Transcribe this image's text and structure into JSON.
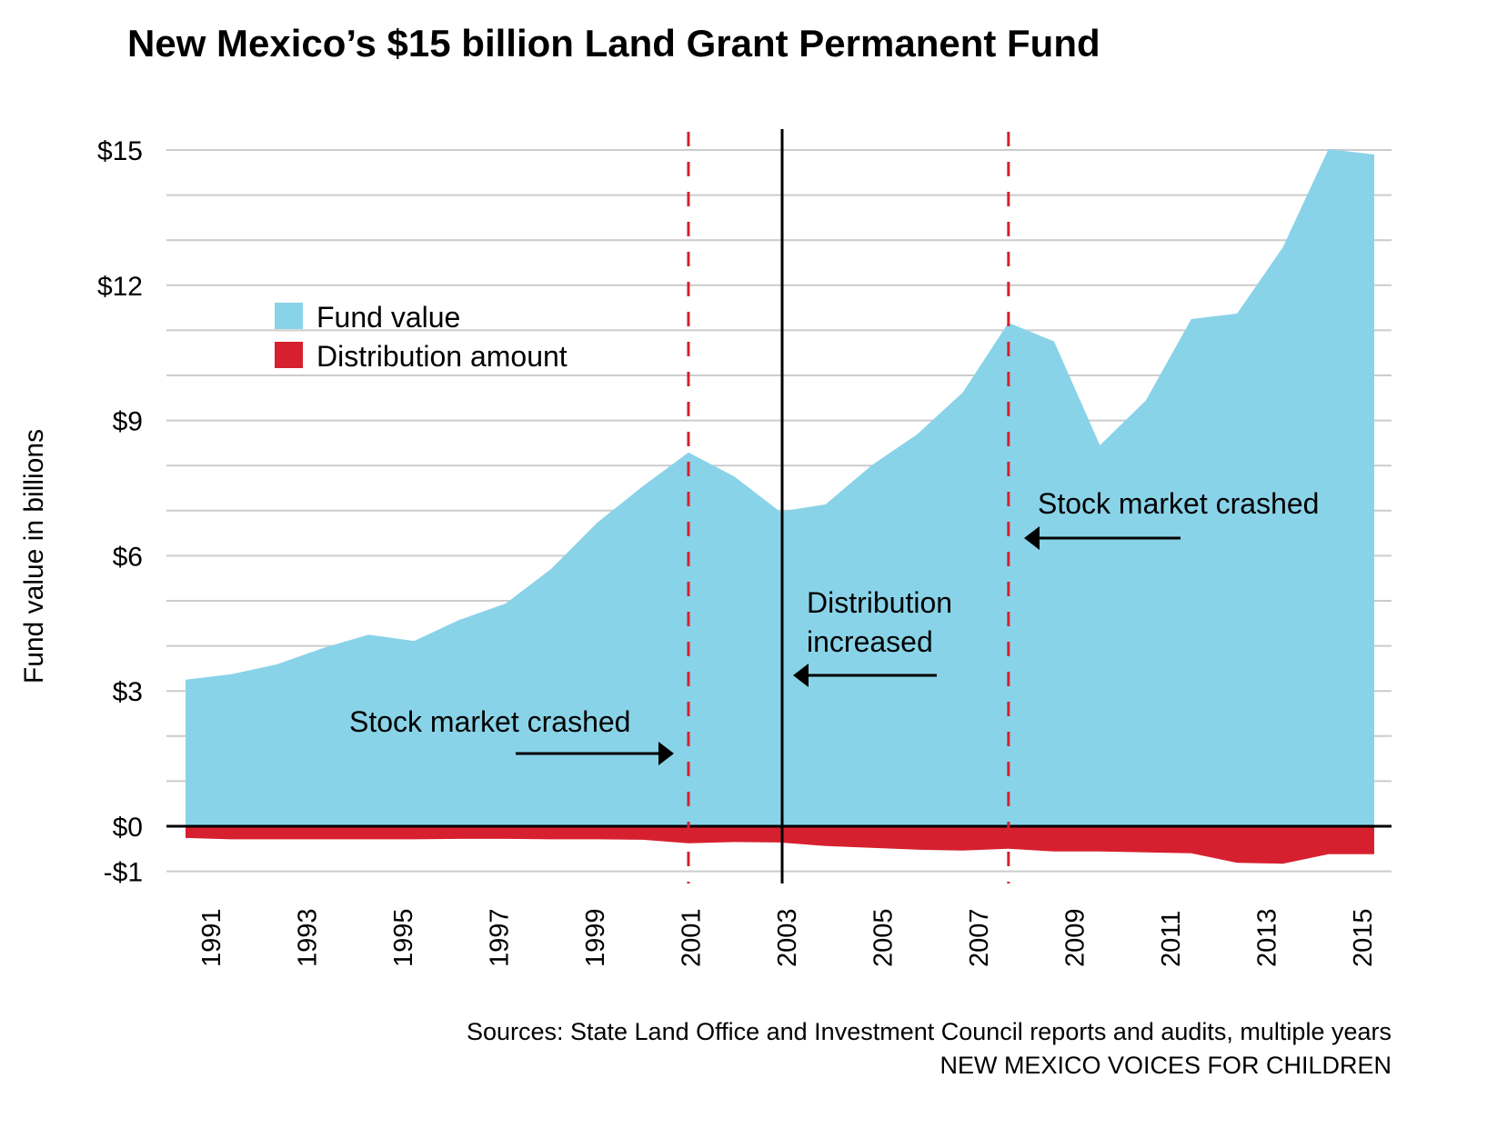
{
  "chart_data": {
    "type": "area",
    "title": "New Mexico’s $15 billion Land Grant Permanent Fund",
    "xlabel": "",
    "ylabel": "Fund value in billions",
    "ylim": [
      -1,
      15
    ],
    "grid": true,
    "y_ticks": [
      {
        "value": 15,
        "label": "$15"
      },
      {
        "value": 12,
        "label": "$12"
      },
      {
        "value": 9,
        "label": "$9"
      },
      {
        "value": 6,
        "label": "$6"
      },
      {
        "value": 3,
        "label": "$3"
      },
      {
        "value": 0,
        "label": "$0"
      },
      {
        "value": -1,
        "label": "-$1"
      }
    ],
    "x_tick_labels": [
      "1991",
      "1993",
      "1995",
      "1997",
      "1999",
      "2001",
      "2003",
      "2005",
      "2007",
      "2009",
      "2011",
      "2013",
      "2015"
    ],
    "x": [
      1990,
      1991,
      1992,
      1993,
      1994,
      1995,
      1996,
      1997,
      1998,
      1999,
      2000,
      2001,
      2002,
      2003,
      2004,
      2005,
      2006,
      2007,
      2008,
      2009,
      2010,
      2011,
      2012,
      2013,
      2014,
      2015,
      2016
    ],
    "series": [
      {
        "name": "Fund value",
        "color": "#89d3e8",
        "values": [
          3.25,
          3.37,
          3.59,
          3.95,
          4.25,
          4.11,
          4.58,
          4.94,
          5.71,
          6.73,
          7.54,
          8.29,
          7.76,
          6.98,
          7.14,
          8.0,
          8.69,
          9.62,
          11.17,
          10.75,
          8.45,
          9.44,
          11.25,
          11.37,
          12.84,
          15.02,
          14.9
        ]
      },
      {
        "name": "Distribution amount",
        "color": "#d7202f",
        "values": [
          -0.26,
          -0.29,
          -0.29,
          -0.29,
          -0.29,
          -0.29,
          -0.28,
          -0.28,
          -0.29,
          -0.29,
          -0.3,
          -0.38,
          -0.35,
          -0.36,
          -0.44,
          -0.48,
          -0.52,
          -0.54,
          -0.5,
          -0.56,
          -0.56,
          -0.58,
          -0.6,
          -0.81,
          -0.83,
          -0.62,
          -0.62
        ]
      }
    ],
    "legend": {
      "placement": "top-left",
      "items": [
        "Fund value",
        "Distribution amount"
      ]
    },
    "reference_lines": [
      {
        "x": 2001,
        "style": "dashed",
        "color": "#d7202f"
      },
      {
        "x": 2003,
        "style": "solid",
        "color": "#000000"
      },
      {
        "x": 2008,
        "style": "dashed",
        "color": "#d7202f"
      }
    ],
    "annotations": [
      {
        "text": [
          "Stock market crashed"
        ],
        "arrow": "right"
      },
      {
        "text": [
          "Distribution",
          "increased"
        ],
        "arrow": "left"
      },
      {
        "text": [
          "Stock market crashed"
        ],
        "arrow": "left"
      }
    ]
  },
  "footer": {
    "sources": "Sources: State Land Office and Investment Council reports and audits, multiple years",
    "credit": "NEW MEXICO VOICES FOR CHILDREN"
  }
}
